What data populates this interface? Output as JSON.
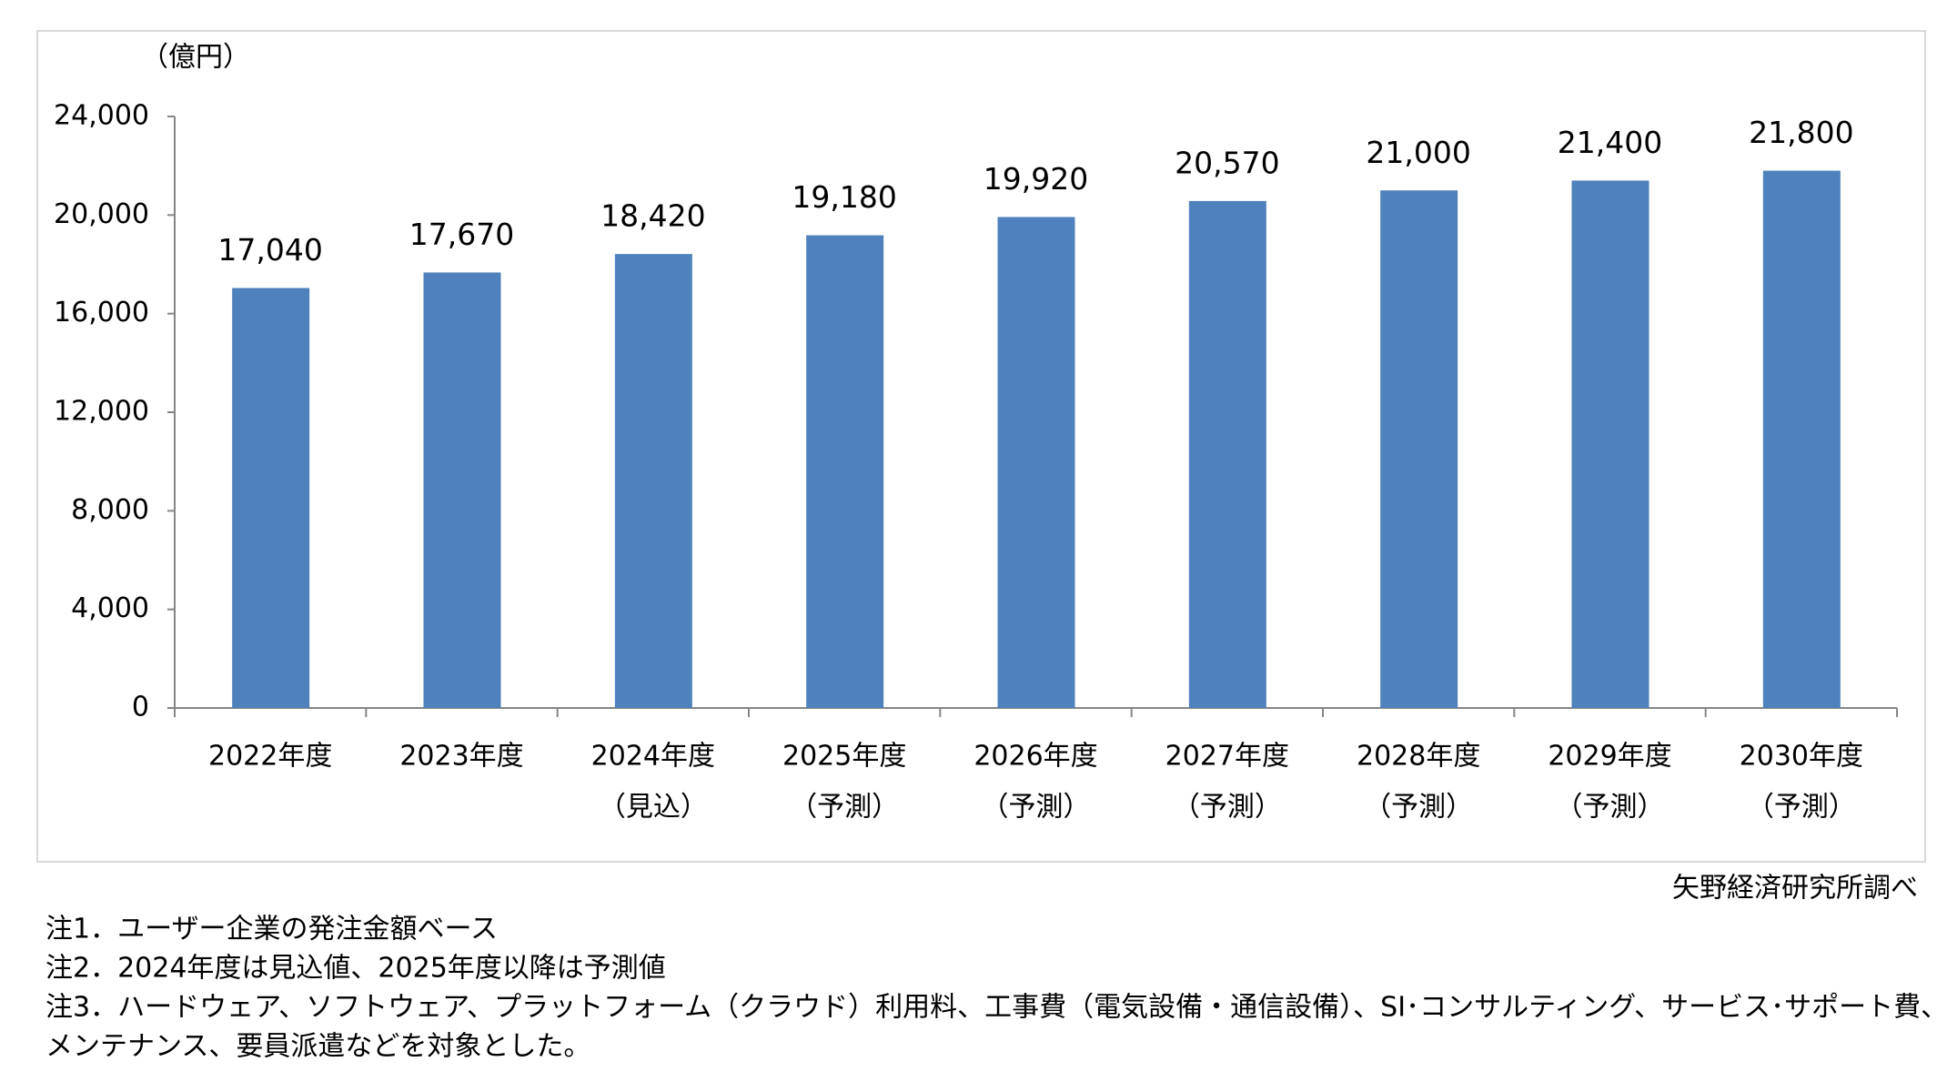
{
  "chart_data": {
    "type": "bar",
    "y_label": "（億円）",
    "categories": [
      [
        "2022年度"
      ],
      [
        "2023年度"
      ],
      [
        "2024年度",
        "（見込）"
      ],
      [
        "2025年度",
        "（予測）"
      ],
      [
        "2026年度",
        "（予測）"
      ],
      [
        "2027年度",
        "（予測）"
      ],
      [
        "2028年度",
        "（予測）"
      ],
      [
        "2029年度",
        "（予測）"
      ],
      [
        "2030年度",
        "（予測）"
      ]
    ],
    "values": [
      17040,
      17670,
      18420,
      19180,
      19920,
      20570,
      21000,
      21400,
      21800
    ],
    "value_labels": [
      "17,040",
      "17,670",
      "18,420",
      "19,180",
      "19,920",
      "20,570",
      "21,000",
      "21,400",
      "21,800"
    ],
    "color": "#4f81bd",
    "ylim": [
      0,
      24000
    ],
    "yticks": [
      0,
      {
        "value": 4000,
        "label": "4,000"
      },
      {
        "value": 8000,
        "label": "8,000"
      },
      {
        "value": 12000,
        "label": "12,000"
      },
      {
        "value": 16000,
        "label": "16,000"
      },
      {
        "value": 20000,
        "label": "20,000"
      },
      {
        "value": 24000,
        "label": "24,000"
      }
    ],
    "grid": false,
    "source": "矢野経済研究所調べ",
    "notes": [
      "注1．ユーザー企業の発注金額ベース",
      "注2．2024年度は見込値、2025年度以降は予測値",
      "注3．ハードウェア、ソフトウェア、プラットフォーム（クラウド）利用料、工事費（電気設備・通信設備）、SI･コンサルティング、サービス･サポート費、保守",
      "メンテナンス、要員派遣などを対象とした。"
    ]
  }
}
